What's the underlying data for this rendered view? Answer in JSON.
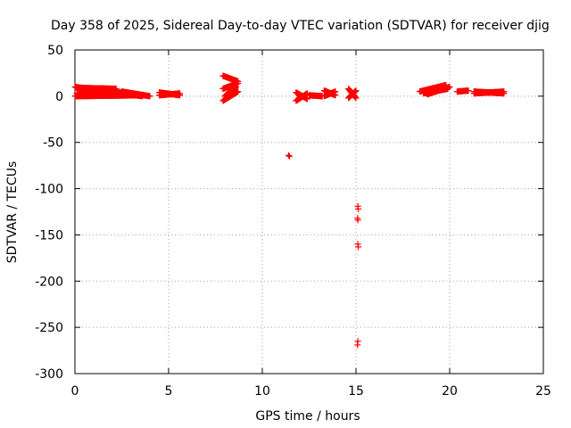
{
  "chart_data": {
    "type": "scatter",
    "title": "Day 358 of 2025, Sidereal Day-to-day VTEC variation (SDTVAR) for receiver djig",
    "xlabel": "GPS time / hours",
    "ylabel": "SDTVAR / TECUs",
    "xlim": [
      0,
      25
    ],
    "ylim": [
      -300,
      50
    ],
    "x_ticks": [
      "0",
      "5",
      "10",
      "15",
      "20",
      "25"
    ],
    "y_ticks": [
      "50",
      "0",
      "-50",
      "-100",
      "-150",
      "-200",
      "-250",
      "-300"
    ],
    "grid": true,
    "marker": "plus",
    "color": "#ff0000",
    "series": [
      {
        "segments": [
          {
            "x0": 0.0,
            "x1": 3.6,
            "y0": 10,
            "y1": 0
          },
          {
            "x0": 0.0,
            "x1": 3.6,
            "y0": 0,
            "y1": 1
          },
          {
            "x0": 0.1,
            "x1": 2.2,
            "y0": 9,
            "y1": 8
          },
          {
            "x0": 0.1,
            "x1": 2.5,
            "y0": 3,
            "y1": 4
          },
          {
            "x0": 2.5,
            "x1": 4.0,
            "y0": 5,
            "y1": 0
          },
          {
            "x0": 4.5,
            "x1": 5.6,
            "y0": 1,
            "y1": 3
          },
          {
            "x0": 4.5,
            "x1": 5.6,
            "y0": 4,
            "y1": 1
          },
          {
            "x0": 7.9,
            "x1": 8.7,
            "y0": 22,
            "y1": 16
          },
          {
            "x0": 7.9,
            "x1": 8.7,
            "y0": 8,
            "y1": 14
          },
          {
            "x0": 7.9,
            "x1": 8.7,
            "y0": -5,
            "y1": 5
          },
          {
            "x0": 8.0,
            "x1": 8.6,
            "y0": 0,
            "y1": 10
          },
          {
            "x0": 11.8,
            "x1": 12.4,
            "y0": -5,
            "y1": 3
          },
          {
            "x0": 11.8,
            "x1": 12.4,
            "y0": 4,
            "y1": -3
          },
          {
            "x0": 12.5,
            "x1": 13.2,
            "y0": 1,
            "y1": 0
          },
          {
            "x0": 13.3,
            "x1": 13.9,
            "y0": 6,
            "y1": 1
          },
          {
            "x0": 13.3,
            "x1": 13.9,
            "y0": 0,
            "y1": 5
          },
          {
            "x0": 14.6,
            "x1": 15.0,
            "y0": 8,
            "y1": -2
          },
          {
            "x0": 14.6,
            "x1": 15.0,
            "y0": -2,
            "y1": 6
          },
          {
            "x0": 18.4,
            "x1": 19.8,
            "y0": 5,
            "y1": 12
          },
          {
            "x0": 18.6,
            "x1": 19.9,
            "y0": 3,
            "y1": 8
          },
          {
            "x0": 18.8,
            "x1": 20.0,
            "y0": 2,
            "y1": 10
          },
          {
            "x0": 20.4,
            "x1": 21.0,
            "y0": 5,
            "y1": 6
          },
          {
            "x0": 21.3,
            "x1": 22.9,
            "y0": 3,
            "y1": 5
          },
          {
            "x0": 21.3,
            "x1": 22.9,
            "y0": 5,
            "y1": 3
          }
        ],
        "points": [
          {
            "x": 11.4,
            "y": -64
          },
          {
            "x": 11.45,
            "y": -65
          },
          {
            "x": 15.1,
            "y": -119
          },
          {
            "x": 15.12,
            "y": -122
          },
          {
            "x": 15.08,
            "y": -132
          },
          {
            "x": 15.1,
            "y": -134
          },
          {
            "x": 15.1,
            "y": -160
          },
          {
            "x": 15.12,
            "y": -163
          },
          {
            "x": 15.1,
            "y": -265
          },
          {
            "x": 15.08,
            "y": -269
          }
        ]
      }
    ]
  }
}
